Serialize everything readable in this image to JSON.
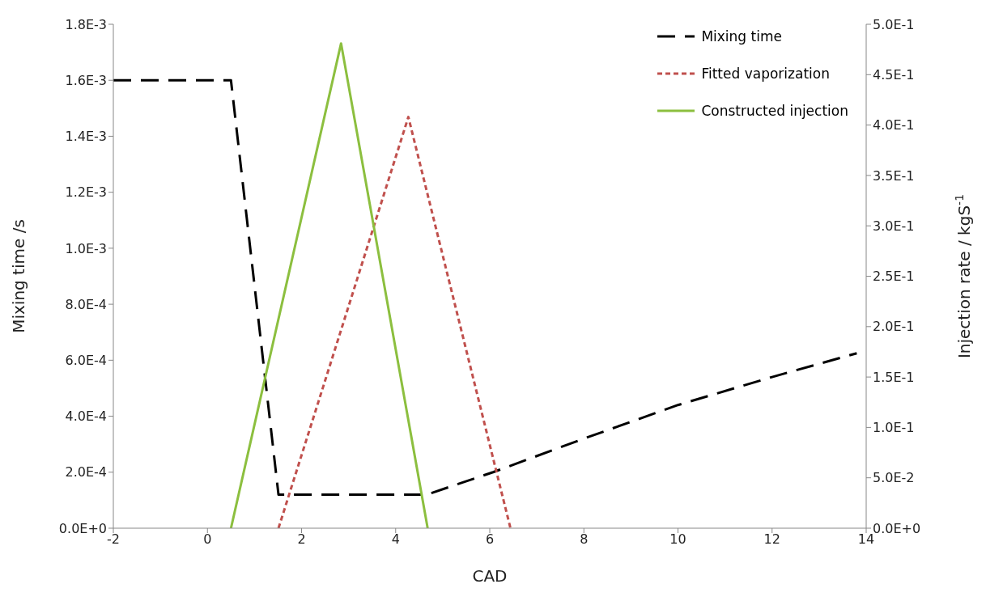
{
  "chart_data": {
    "type": "line",
    "xlabel": "CAD",
    "ylabel": "Mixing time /s",
    "y2label": "Injection rate / kgS$^{-1}$",
    "xlim": [
      -2,
      14
    ],
    "xticks": [
      -2,
      0,
      2,
      4,
      6,
      8,
      10,
      12,
      14
    ],
    "ylim": [
      0,
      0.0018
    ],
    "yticks": [
      {
        "value": 0,
        "label": "0.0E+0"
      },
      {
        "value": 0.0002,
        "label": "2.0E-4"
      },
      {
        "value": 0.0004,
        "label": "4.0E-4"
      },
      {
        "value": 0.0006,
        "label": "6.0E-4"
      },
      {
        "value": 0.0008,
        "label": "8.0E-4"
      },
      {
        "value": 0.001,
        "label": "1.0E-3"
      },
      {
        "value": 0.0012,
        "label": "1.2E-3"
      },
      {
        "value": 0.0014,
        "label": "1.4E-3"
      },
      {
        "value": 0.0016,
        "label": "1.6E-3"
      },
      {
        "value": 0.0018,
        "label": "1.8E-3"
      }
    ],
    "y2lim": [
      0,
      0.5
    ],
    "y2ticks": [
      {
        "value": 0,
        "label": "0.0E+0"
      },
      {
        "value": 0.05,
        "label": "5.0E-2"
      },
      {
        "value": 0.1,
        "label": "1.0E-1"
      },
      {
        "value": 0.15,
        "label": "1.5E-1"
      },
      {
        "value": 0.2,
        "label": "2.0E-1"
      },
      {
        "value": 0.25,
        "label": "2.5E-1"
      },
      {
        "value": 0.3,
        "label": "3.0E-1"
      },
      {
        "value": 0.35,
        "label": "3.5E-1"
      },
      {
        "value": 0.4,
        "label": "4.0E-1"
      },
      {
        "value": 0.45,
        "label": "4.5E-1"
      },
      {
        "value": 0.5,
        "label": "5.0E-1"
      }
    ],
    "grid": false,
    "legend": "top right",
    "marker": "none",
    "series": [
      {
        "name": "Mixing time",
        "color": "#000000",
        "line_style": "dashed",
        "x": [
          -2,
          0.5,
          1.51,
          4.66,
          6.07,
          8,
          10,
          12,
          13.8
        ],
        "values": [
          0.0016,
          0.0016,
          0.00012,
          0.00012,
          0.0002,
          0.00032,
          0.00044,
          0.00054,
          0.000625
        ]
      },
      {
        "name": "Fitted vaporization",
        "color": "#c0504d",
        "line_style": "dotted",
        "axis": "y2",
        "x": [
          1.51,
          4.27,
          6.44
        ],
        "values": [
          0,
          0.408,
          0
        ]
      },
      {
        "name": "Constructed injection",
        "color": "#8cbf3f",
        "line_style": "solid",
        "axis": "y2",
        "x": [
          0.5,
          2.84,
          4.68
        ],
        "values": [
          0,
          0.481,
          0
        ]
      }
    ]
  }
}
